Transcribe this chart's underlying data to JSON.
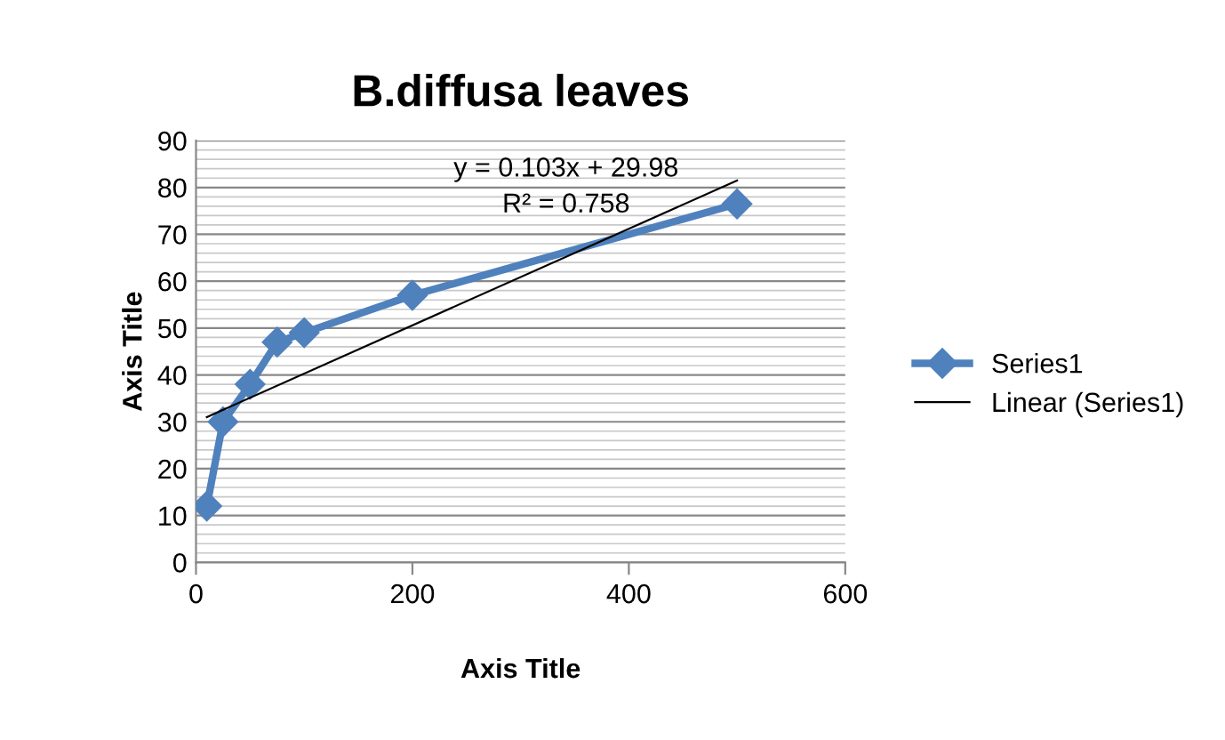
{
  "chart_data": {
    "type": "line",
    "title": "B.diffusa leaves",
    "xlabel": "Axis Title",
    "ylabel": "Axis Title",
    "x": [
      10,
      25,
      50,
      75,
      100,
      200,
      500
    ],
    "series": [
      {
        "name": "Series1",
        "color": "#4f81bd",
        "values": [
          12,
          30,
          38,
          47,
          49,
          57,
          76.5
        ],
        "marker": "diamond"
      },
      {
        "name": "Linear (Series1)",
        "color": "#000000",
        "type": "line",
        "x": [
          10,
          500
        ],
        "values": [
          31.01,
          81.48
        ],
        "marker": "none"
      }
    ],
    "annotations": [
      "y = 0.103x + 29.98",
      "R² = 0.758"
    ],
    "xlim": [
      0,
      600
    ],
    "xticks": [
      0,
      200,
      400,
      600
    ],
    "ylim": [
      0,
      90
    ],
    "yticks": [
      0,
      10,
      20,
      30,
      40,
      50,
      60,
      70,
      80,
      90
    ],
    "grid": "y",
    "legend": "right"
  }
}
